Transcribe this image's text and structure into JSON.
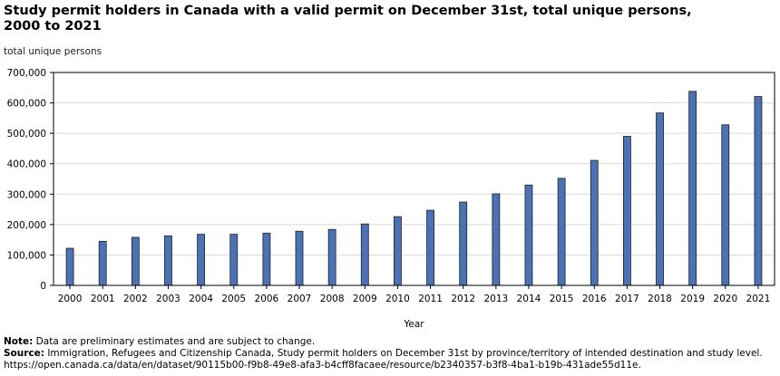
{
  "chart_data": {
    "type": "bar",
    "title": "Study permit holders in Canada with a valid permit on December 31st, total unique persons, 2000 to 2021",
    "title_line1": "Study permit holders in Canada with a valid permit on December 31st, total unique persons,",
    "title_line2": "2000 to 2021",
    "ylabel": "total unique persons",
    "xlabel": "Year",
    "ylim": [
      0,
      700000
    ],
    "yticks": [
      0,
      100000,
      200000,
      300000,
      400000,
      500000,
      600000,
      700000
    ],
    "ytick_labels": [
      "0",
      "100,000",
      "200,000",
      "300,000",
      "400,000",
      "500,000",
      "600,000",
      "700,000"
    ],
    "categories": [
      "2000",
      "2001",
      "2002",
      "2003",
      "2004",
      "2005",
      "2006",
      "2007",
      "2008",
      "2009",
      "2010",
      "2011",
      "2012",
      "2013",
      "2014",
      "2015",
      "2016",
      "2017",
      "2018",
      "2019",
      "2020",
      "2021"
    ],
    "values": [
      122000,
      145000,
      158000,
      163000,
      168000,
      168000,
      172000,
      178000,
      184000,
      202000,
      226000,
      247000,
      274000,
      301000,
      330000,
      352000,
      411000,
      490000,
      567000,
      638000,
      528000,
      621000
    ],
    "bar_color": "#4a72b5",
    "grid": true
  },
  "notes": {
    "note_label": "Note:",
    "note_text": " Data are preliminary estimates and are subject to change.",
    "source_label": "Source:",
    "source_text": " Immigration, Refugees and Citizenship Canada, Study permit holders on December 31st by province/territory of intended destination and study level. https://open.canada.ca/data/en/dataset/90115b00-f9b8-49e8-afa3-b4cff8facaee/resource/b2340357-b3f8-4ba1-b19b-431ade55d11e."
  }
}
